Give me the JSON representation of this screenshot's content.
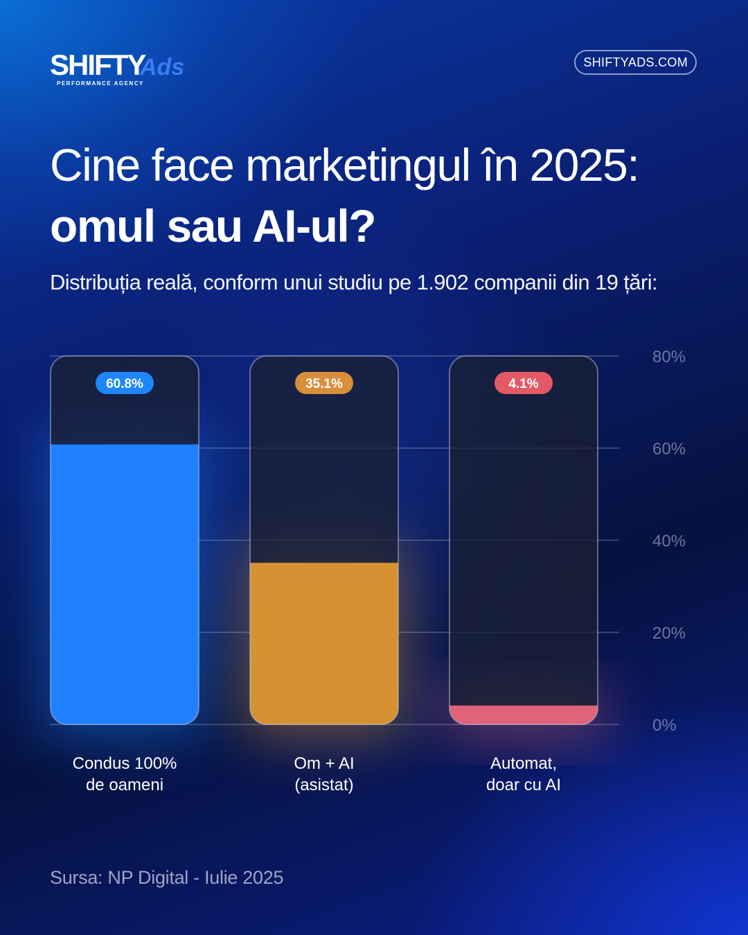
{
  "brand": {
    "logo_main": "SHIFTY",
    "logo_accent": "Ads",
    "logo_tagline": "PERFORMANCE AGENCY",
    "website": "SHIFTYADS.COM"
  },
  "header": {
    "title_line1": "Cine face marketingul în 2025:",
    "title_line2": "omul sau AI-ul?",
    "subtitle": "Distribuția reală, conform unui studiu pe 1.902 companii din 19 țări:"
  },
  "chart_data": {
    "type": "bar",
    "categories": [
      [
        "Condus 100%",
        "de oameni"
      ],
      [
        "Om + AI",
        "(asistat)"
      ],
      [
        "Automat,",
        "doar cu AI"
      ]
    ],
    "values": [
      60.8,
      35.1,
      4.1
    ],
    "value_labels": [
      "60.8%",
      "35.1%",
      "4.1%"
    ],
    "colors": [
      "#1f80ff",
      "#d69232",
      "#e0637a"
    ],
    "badge_colors": [
      "#1e86ff",
      "#d98e3a",
      "#e35a66"
    ],
    "ylim": [
      0,
      80
    ],
    "yticks": [
      0,
      20,
      40,
      60,
      80
    ],
    "ytick_labels": [
      "0%",
      "20%",
      "40%",
      "60%",
      "80%"
    ],
    "grid": true
  },
  "footer": {
    "source": "Sursa: NP Digital - Iulie 2025"
  }
}
